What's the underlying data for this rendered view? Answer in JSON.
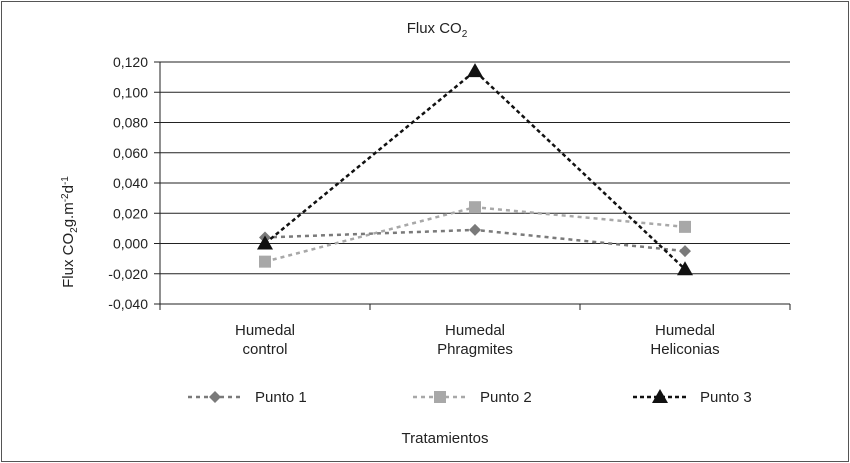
{
  "chart_data": {
    "type": "line",
    "title": "Flux CO2",
    "title_main": "Flux CO",
    "title_sub": "2",
    "ylabel": "Flux CO2g.m-2d-1",
    "ylabel_parts": {
      "a": "Flux CO",
      "b": "2",
      "c": "g.m",
      "d": "-2",
      "e": "d",
      "f": "-1"
    },
    "xlabel": "Tratamientos",
    "categories": [
      "Humedal control",
      "Humedal Phragmites",
      "Humedal Heliconias"
    ],
    "category_lines": [
      [
        "Humedal",
        "control"
      ],
      [
        "Humedal",
        "Phragmites"
      ],
      [
        "Humedal",
        "Heliconias"
      ]
    ],
    "ylim": [
      -0.04,
      0.12
    ],
    "yticks": [
      -0.04,
      -0.02,
      0.0,
      0.02,
      0.04,
      0.06,
      0.08,
      0.1,
      0.12
    ],
    "ytick_labels": [
      "-0,040",
      "-0,020",
      "0,000",
      "0,020",
      "0,040",
      "0,060",
      "0,080",
      "0,100",
      "0,120"
    ],
    "grid": true,
    "legend_position": "bottom",
    "series": [
      {
        "name": "Punto 1",
        "values": [
          0.004,
          0.009,
          -0.005
        ],
        "marker": "diamond",
        "color": "#7a7a7a",
        "dash": "4,4"
      },
      {
        "name": "Punto 2",
        "values": [
          -0.012,
          0.024,
          0.011
        ],
        "marker": "square",
        "color": "#a8a8a8",
        "dash": "4,4"
      },
      {
        "name": "Punto 3",
        "values": [
          0.0,
          0.114,
          -0.017
        ],
        "marker": "triangle",
        "color": "#111111",
        "dash": "4,3"
      }
    ]
  }
}
